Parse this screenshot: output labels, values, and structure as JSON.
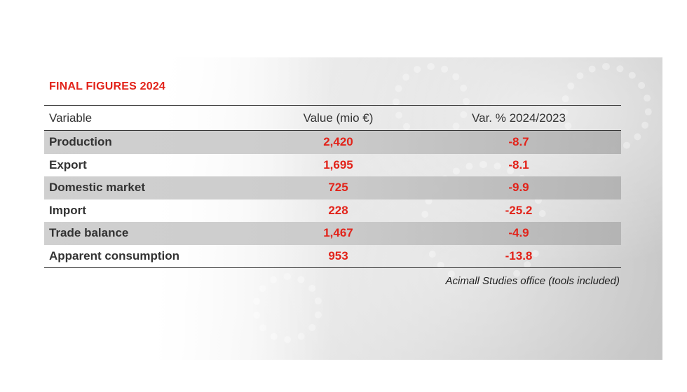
{
  "title": "FINAL FIGURES 2024",
  "table": {
    "headers": {
      "variable": "Variable",
      "value": "Value (mio €)",
      "change": "Var. % 2024/2023"
    },
    "rows": [
      {
        "variable": "Production",
        "value": "2,420",
        "change": "-8.7"
      },
      {
        "variable": "Export",
        "value": "1,695",
        "change": "-8.1"
      },
      {
        "variable": "Domestic market",
        "value": "725",
        "change": "-9.9"
      },
      {
        "variable": "Import",
        "value": "228",
        "change": "-25.2"
      },
      {
        "variable": "Trade balance",
        "value": "1,467",
        "change": "-4.9"
      },
      {
        "variable": "Apparent consumption",
        "value": "953",
        "change": "-13.8"
      }
    ]
  },
  "source": "Acimall Studies office (tools included)",
  "colors": {
    "accent": "#e2231a",
    "text": "#333333"
  }
}
